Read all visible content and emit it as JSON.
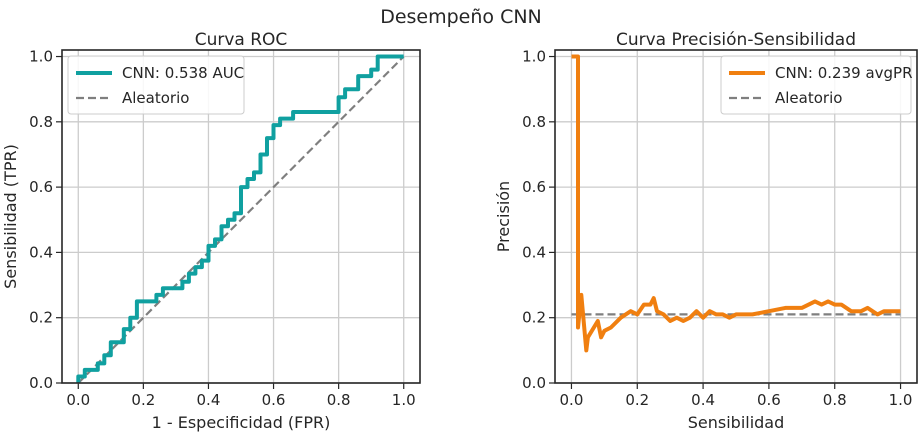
{
  "figure": {
    "suptitle": "Desempeño CNN"
  },
  "chart_data": [
    {
      "type": "line",
      "title": "Curva ROC",
      "xlabel": "1 - Especificidad (FPR)",
      "ylabel": "Sensibilidad (TPR)",
      "xlim": [
        -0.05,
        1.05
      ],
      "ylim": [
        0,
        1.02
      ],
      "xticks": [
        "0.0",
        "0.2",
        "0.4",
        "0.6",
        "0.8",
        "1.0"
      ],
      "yticks": [
        "0.0",
        "0.2",
        "0.4",
        "0.6",
        "0.8",
        "1.0"
      ],
      "grid": true,
      "legend_position": "upper-left",
      "series": [
        {
          "name": "CNN: 0.538 AUC",
          "color": "#10a0a0",
          "style": "solid",
          "x": [
            0.0,
            0.0,
            0.02,
            0.02,
            0.04,
            0.04,
            0.06,
            0.06,
            0.08,
            0.08,
            0.1,
            0.1,
            0.14,
            0.14,
            0.16,
            0.16,
            0.18,
            0.18,
            0.2,
            0.2,
            0.24,
            0.24,
            0.26,
            0.26,
            0.3,
            0.3,
            0.32,
            0.32,
            0.34,
            0.34,
            0.36,
            0.36,
            0.38,
            0.38,
            0.4,
            0.4,
            0.42,
            0.42,
            0.44,
            0.44,
            0.46,
            0.46,
            0.48,
            0.48,
            0.5,
            0.5,
            0.52,
            0.52,
            0.54,
            0.54,
            0.56,
            0.56,
            0.58,
            0.58,
            0.6,
            0.6,
            0.62,
            0.62,
            0.66,
            0.66,
            0.8,
            0.8,
            0.82,
            0.82,
            0.86,
            0.86,
            0.9,
            0.9,
            0.92,
            0.92,
            1.0
          ],
          "y": [
            0.0,
            0.02,
            0.02,
            0.04,
            0.04,
            0.04,
            0.04,
            0.06,
            0.06,
            0.085,
            0.085,
            0.125,
            0.125,
            0.165,
            0.165,
            0.2,
            0.2,
            0.25,
            0.25,
            0.25,
            0.25,
            0.27,
            0.27,
            0.29,
            0.29,
            0.29,
            0.29,
            0.31,
            0.31,
            0.335,
            0.335,
            0.355,
            0.355,
            0.375,
            0.375,
            0.42,
            0.42,
            0.44,
            0.44,
            0.48,
            0.48,
            0.5,
            0.5,
            0.52,
            0.52,
            0.6,
            0.6,
            0.625,
            0.625,
            0.645,
            0.645,
            0.7,
            0.7,
            0.75,
            0.75,
            0.79,
            0.79,
            0.81,
            0.81,
            0.83,
            0.83,
            0.875,
            0.875,
            0.9,
            0.9,
            0.94,
            0.94,
            0.96,
            0.96,
            1.0,
            1.0
          ]
        },
        {
          "name": "Aleatorio",
          "color": "#7f7f7f",
          "style": "dashed",
          "x": [
            0.0,
            1.0
          ],
          "y": [
            0.0,
            1.0
          ]
        }
      ]
    },
    {
      "type": "line",
      "title": "Curva Precisión-Sensibilidad",
      "xlabel": "Sensibilidad",
      "ylabel": "Precisión",
      "xlim": [
        -0.05,
        1.05
      ],
      "ylim": [
        0,
        1.02
      ],
      "xticks": [
        "0.0",
        "0.2",
        "0.4",
        "0.6",
        "0.8",
        "1.0"
      ],
      "yticks": [
        "0.0",
        "0.2",
        "0.4",
        "0.6",
        "0.8",
        "1.0"
      ],
      "grid": true,
      "legend_position": "upper-right",
      "series": [
        {
          "name": "CNN: 0.239 avgPR",
          "color": "#f07f10",
          "style": "solid",
          "x": [
            0.0,
            0.02,
            0.02,
            0.03,
            0.045,
            0.05,
            0.08,
            0.09,
            0.1,
            0.12,
            0.15,
            0.18,
            0.2,
            0.22,
            0.24,
            0.25,
            0.26,
            0.28,
            0.3,
            0.32,
            0.34,
            0.36,
            0.38,
            0.4,
            0.42,
            0.44,
            0.46,
            0.48,
            0.5,
            0.52,
            0.55,
            0.6,
            0.65,
            0.7,
            0.74,
            0.76,
            0.78,
            0.8,
            0.82,
            0.85,
            0.88,
            0.9,
            0.93,
            0.95,
            1.0
          ],
          "y": [
            1.0,
            1.0,
            0.17,
            0.27,
            0.1,
            0.14,
            0.19,
            0.14,
            0.16,
            0.17,
            0.2,
            0.22,
            0.21,
            0.24,
            0.24,
            0.26,
            0.22,
            0.21,
            0.19,
            0.2,
            0.19,
            0.2,
            0.22,
            0.2,
            0.22,
            0.21,
            0.21,
            0.2,
            0.21,
            0.21,
            0.21,
            0.22,
            0.23,
            0.23,
            0.25,
            0.24,
            0.25,
            0.24,
            0.24,
            0.22,
            0.22,
            0.23,
            0.21,
            0.22,
            0.22
          ]
        },
        {
          "name": "Aleatorio",
          "color": "#7f7f7f",
          "style": "dashed",
          "x": [
            0.0,
            1.0
          ],
          "y": [
            0.21,
            0.21
          ]
        }
      ]
    }
  ]
}
